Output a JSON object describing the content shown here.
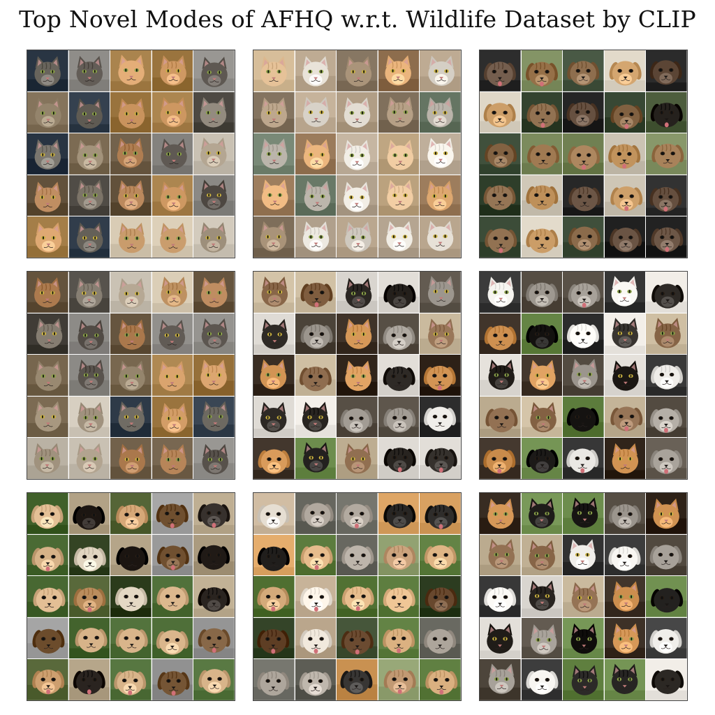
{
  "title": "Top Novel Modes of AFHQ w.r.t. Wildlife Dataset by CLIP",
  "palette": {
    "cat": [
      {
        "fur": "#b8865a",
        "bg": "#6b5a44"
      },
      {
        "fur": "#8a8276",
        "bg": "#4a4640"
      },
      {
        "fur": "#c79a6a",
        "bg": "#d8cbb4"
      },
      {
        "fur": "#6e6a62",
        "bg": "#2e3a48"
      },
      {
        "fur": "#9c8c74",
        "bg": "#7b6a52"
      },
      {
        "fur": "#d6a06a",
        "bg": "#a07a44"
      },
      {
        "fur": "#5c5650",
        "bg": "#8c8a86"
      },
      {
        "fur": "#a89a86",
        "bg": "#c8c0b2"
      }
    ],
    "kitten": [
      {
        "fur": "#e4c096",
        "bg": "#c9b08c"
      },
      {
        "fur": "#dcd6cc",
        "bg": "#b7a48c"
      },
      {
        "fur": "#b09a80",
        "bg": "#8a7a66"
      },
      {
        "fur": "#e8b27a",
        "bg": "#9a7a5a"
      },
      {
        "fur": "#c8c2b8",
        "bg": "#6a7a68"
      },
      {
        "fur": "#f0ece4",
        "bg": "#b8a894"
      }
    ],
    "dog": [
      {
        "fur": "#8a6a4a",
        "bg": "#3a4a36"
      },
      {
        "fur": "#2c2824",
        "bg": "#5a6a4a"
      },
      {
        "fur": "#c89a64",
        "bg": "#d8d0c0"
      },
      {
        "fur": "#6a5444",
        "bg": "#2a2a2a"
      },
      {
        "fur": "#a07a52",
        "bg": "#7a8a5c"
      },
      {
        "fur": "#d8c8b0",
        "bg": "#4a5a3a"
      }
    ],
    "mixed": [
      {
        "fur": "#2a2622",
        "bg": "#e6e2dc"
      },
      {
        "fur": "#f2f0ec",
        "bg": "#3a3a3a"
      },
      {
        "fur": "#1e1c1a",
        "bg": "#6a8a4a"
      },
      {
        "fur": "#8c6a4c",
        "bg": "#c8b89c"
      },
      {
        "fur": "#a8a29a",
        "bg": "#5a5248"
      },
      {
        "fur": "#d89a5a",
        "bg": "#3a2e24"
      }
    ],
    "small": [
      {
        "fur": "#c89a6a",
        "bg": "#5a6a3c"
      },
      {
        "fur": "#e8dcc8",
        "bg": "#3a4a2a"
      },
      {
        "fur": "#2a2420",
        "bg": "#b8a88c"
      },
      {
        "fur": "#a87a4a",
        "bg": "#d8c8b0"
      },
      {
        "fur": "#d8b48a",
        "bg": "#4a6a34"
      },
      {
        "fur": "#7a5a3a",
        "bg": "#9a9a9a"
      }
    ],
    "fluffy": [
      {
        "fur": "#e2b888",
        "bg": "#5a7a3c"
      },
      {
        "fur": "#f0e8dc",
        "bg": "#c8b49a"
      },
      {
        "fur": "#6a4a30",
        "bg": "#3a4a2e"
      },
      {
        "fur": "#c8a07a",
        "bg": "#8a9a6a"
      },
      {
        "fur": "#2a2826",
        "bg": "#d8a060"
      },
      {
        "fur": "#b8b0a6",
        "bg": "#6a6a62"
      }
    ]
  },
  "panels": [
    {
      "name": "panel-1",
      "kind": "cat",
      "seed": 3
    },
    {
      "name": "panel-2",
      "kind": "kitten",
      "seed": 11
    },
    {
      "name": "panel-3",
      "kind": "dog",
      "seed": 19
    },
    {
      "name": "panel-4",
      "kind": "cat",
      "seed": 27
    },
    {
      "name": "panel-5",
      "kind": "mixed",
      "seed": 35
    },
    {
      "name": "panel-6",
      "kind": "mixed",
      "seed": 43
    },
    {
      "name": "panel-7",
      "kind": "small",
      "seed": 51
    },
    {
      "name": "panel-8",
      "kind": "fluffy",
      "seed": 59
    },
    {
      "name": "panel-9",
      "kind": "mixed",
      "seed": 67
    }
  ]
}
